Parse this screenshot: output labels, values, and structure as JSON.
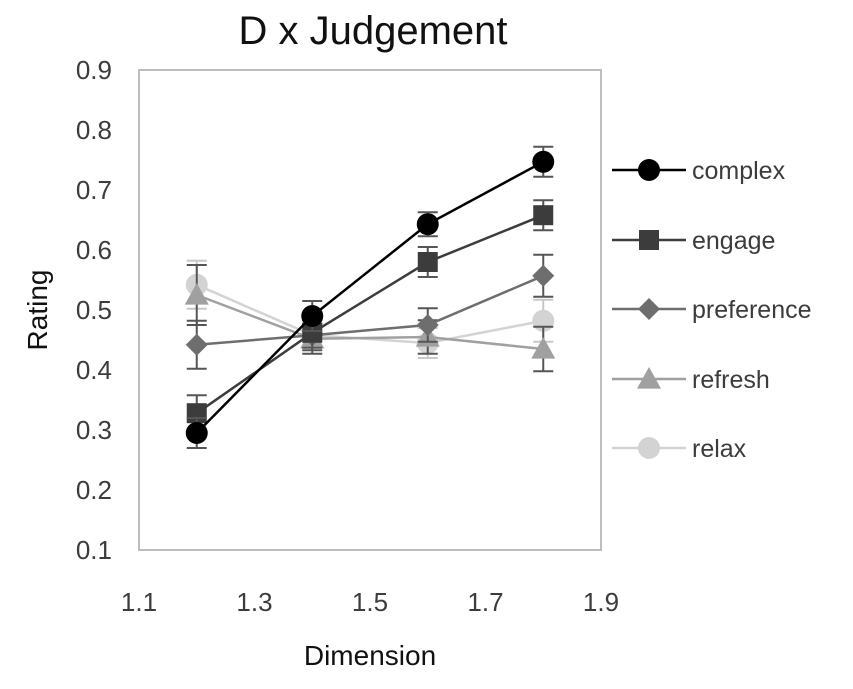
{
  "chart_data": {
    "type": "line",
    "title": "D x Judgement",
    "xlabel": "Dimension",
    "ylabel": "Rating",
    "xlim": [
      1.1,
      1.9
    ],
    "ylim": [
      0.1,
      0.9
    ],
    "x_ticks": [
      "1.1",
      "1.3",
      "1.5",
      "1.7",
      "1.9"
    ],
    "y_ticks": [
      "0.1",
      "0.2",
      "0.3",
      "0.4",
      "0.5",
      "0.6",
      "0.7",
      "0.8",
      "0.9"
    ],
    "x": [
      1.2,
      1.4,
      1.6,
      1.8
    ],
    "grid": false,
    "legend_position": "right",
    "series": [
      {
        "name": "complex",
        "marker": "circle",
        "color": "#000000",
        "values": [
          0.295,
          0.49,
          0.643,
          0.747
        ],
        "errors": [
          0.025,
          0.025,
          0.02,
          0.025
        ]
      },
      {
        "name": "engage",
        "marker": "square",
        "color": "#3c3c3c",
        "values": [
          0.328,
          0.462,
          0.58,
          0.658
        ],
        "errors": [
          0.03,
          0.025,
          0.025,
          0.025
        ]
      },
      {
        "name": "preference",
        "marker": "diamond",
        "color": "#6e6e6e",
        "values": [
          0.442,
          0.458,
          0.475,
          0.557
        ],
        "errors": [
          0.04,
          0.025,
          0.028,
          0.035
        ]
      },
      {
        "name": "refresh",
        "marker": "triangle",
        "color": "#a0a0a0",
        "values": [
          0.525,
          0.452,
          0.455,
          0.435
        ],
        "errors": [
          0.05,
          0.025,
          0.028,
          0.037
        ]
      },
      {
        "name": "relax",
        "marker": "circle",
        "color": "#d3d3d3",
        "values": [
          0.542,
          0.458,
          0.445,
          0.482
        ],
        "errors": [
          0.04,
          0.02,
          0.025,
          0.035
        ]
      }
    ]
  }
}
